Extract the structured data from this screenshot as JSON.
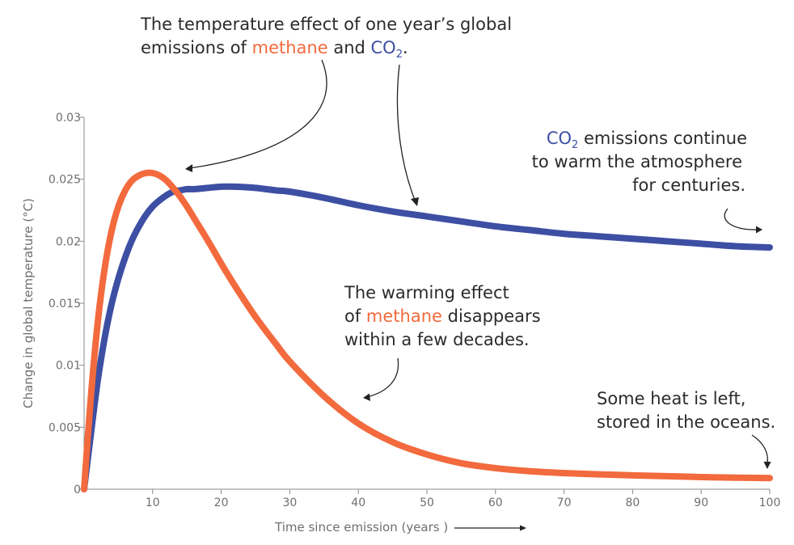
{
  "chart_data": {
    "type": "line",
    "xlabel": "Time since emission (years )",
    "ylabel": "Change in global temperature (°C)",
    "xlim": [
      0,
      100
    ],
    "ylim": [
      0,
      0.03
    ],
    "x_ticks": [
      "10",
      "20",
      "30",
      "40",
      "50",
      "60",
      "70",
      "80",
      "90",
      "100"
    ],
    "y_ticks": [
      "0",
      "0.005",
      "0.01",
      "0.015",
      "0.02",
      "0.025",
      "0.03"
    ],
    "grid": false,
    "x": [
      0,
      1,
      2,
      3,
      4,
      5,
      6,
      7,
      8,
      9,
      10,
      11,
      12,
      13,
      14,
      15,
      16,
      18,
      20,
      22,
      25,
      28,
      30,
      35,
      40,
      45,
      50,
      55,
      60,
      65,
      70,
      75,
      80,
      85,
      90,
      95,
      100
    ],
    "series": [
      {
        "name": "methane",
        "color": "#f26a3d",
        "values": [
          0,
          0.0075,
          0.0135,
          0.0178,
          0.0208,
          0.0228,
          0.0241,
          0.0249,
          0.0253,
          0.0255,
          0.0255,
          0.0253,
          0.0249,
          0.0243,
          0.0236,
          0.0228,
          0.0219,
          0.0201,
          0.0182,
          0.0164,
          0.0139,
          0.0117,
          0.0103,
          0.0075,
          0.0053,
          0.0038,
          0.0028,
          0.0021,
          0.0017,
          0.00145,
          0.0013,
          0.0012,
          0.00112,
          0.00105,
          0.00098,
          0.00093,
          0.0009
        ]
      },
      {
        "name": "CO2",
        "color": "#3d4fa3",
        "values": [
          0,
          0.0045,
          0.0088,
          0.0122,
          0.0149,
          0.017,
          0.0187,
          0.0201,
          0.0212,
          0.0221,
          0.0228,
          0.0233,
          0.0237,
          0.024,
          0.0241,
          0.0242,
          0.0242,
          0.0243,
          0.0244,
          0.0244,
          0.0243,
          0.0241,
          0.024,
          0.0235,
          0.0229,
          0.0224,
          0.022,
          0.0216,
          0.0212,
          0.0209,
          0.0206,
          0.0204,
          0.0202,
          0.02,
          0.0198,
          0.0196,
          0.0195
        ]
      }
    ],
    "annotations": {
      "top": {
        "line1": "The temperature effect of one year’s global",
        "line2_a": "emissions of ",
        "line2_methane": "methane",
        "line2_b": " and ",
        "line2_co": "CO",
        "line2_sub": "2",
        "line2_end": "."
      },
      "co2_note": {
        "co": "CO",
        "sub": "2",
        "line1_rest": " emissions continue",
        "line2": "to warm the atmosphere",
        "line3": "for centuries."
      },
      "methane_note": {
        "line1": "The warming effect",
        "line2_a": "of ",
        "line2_methane": "methane",
        "line2_b": " disappears",
        "line3": "within a few decades."
      },
      "ocean_note": {
        "line1": "Some heat is left,",
        "line2": "stored in the oceans."
      }
    }
  }
}
